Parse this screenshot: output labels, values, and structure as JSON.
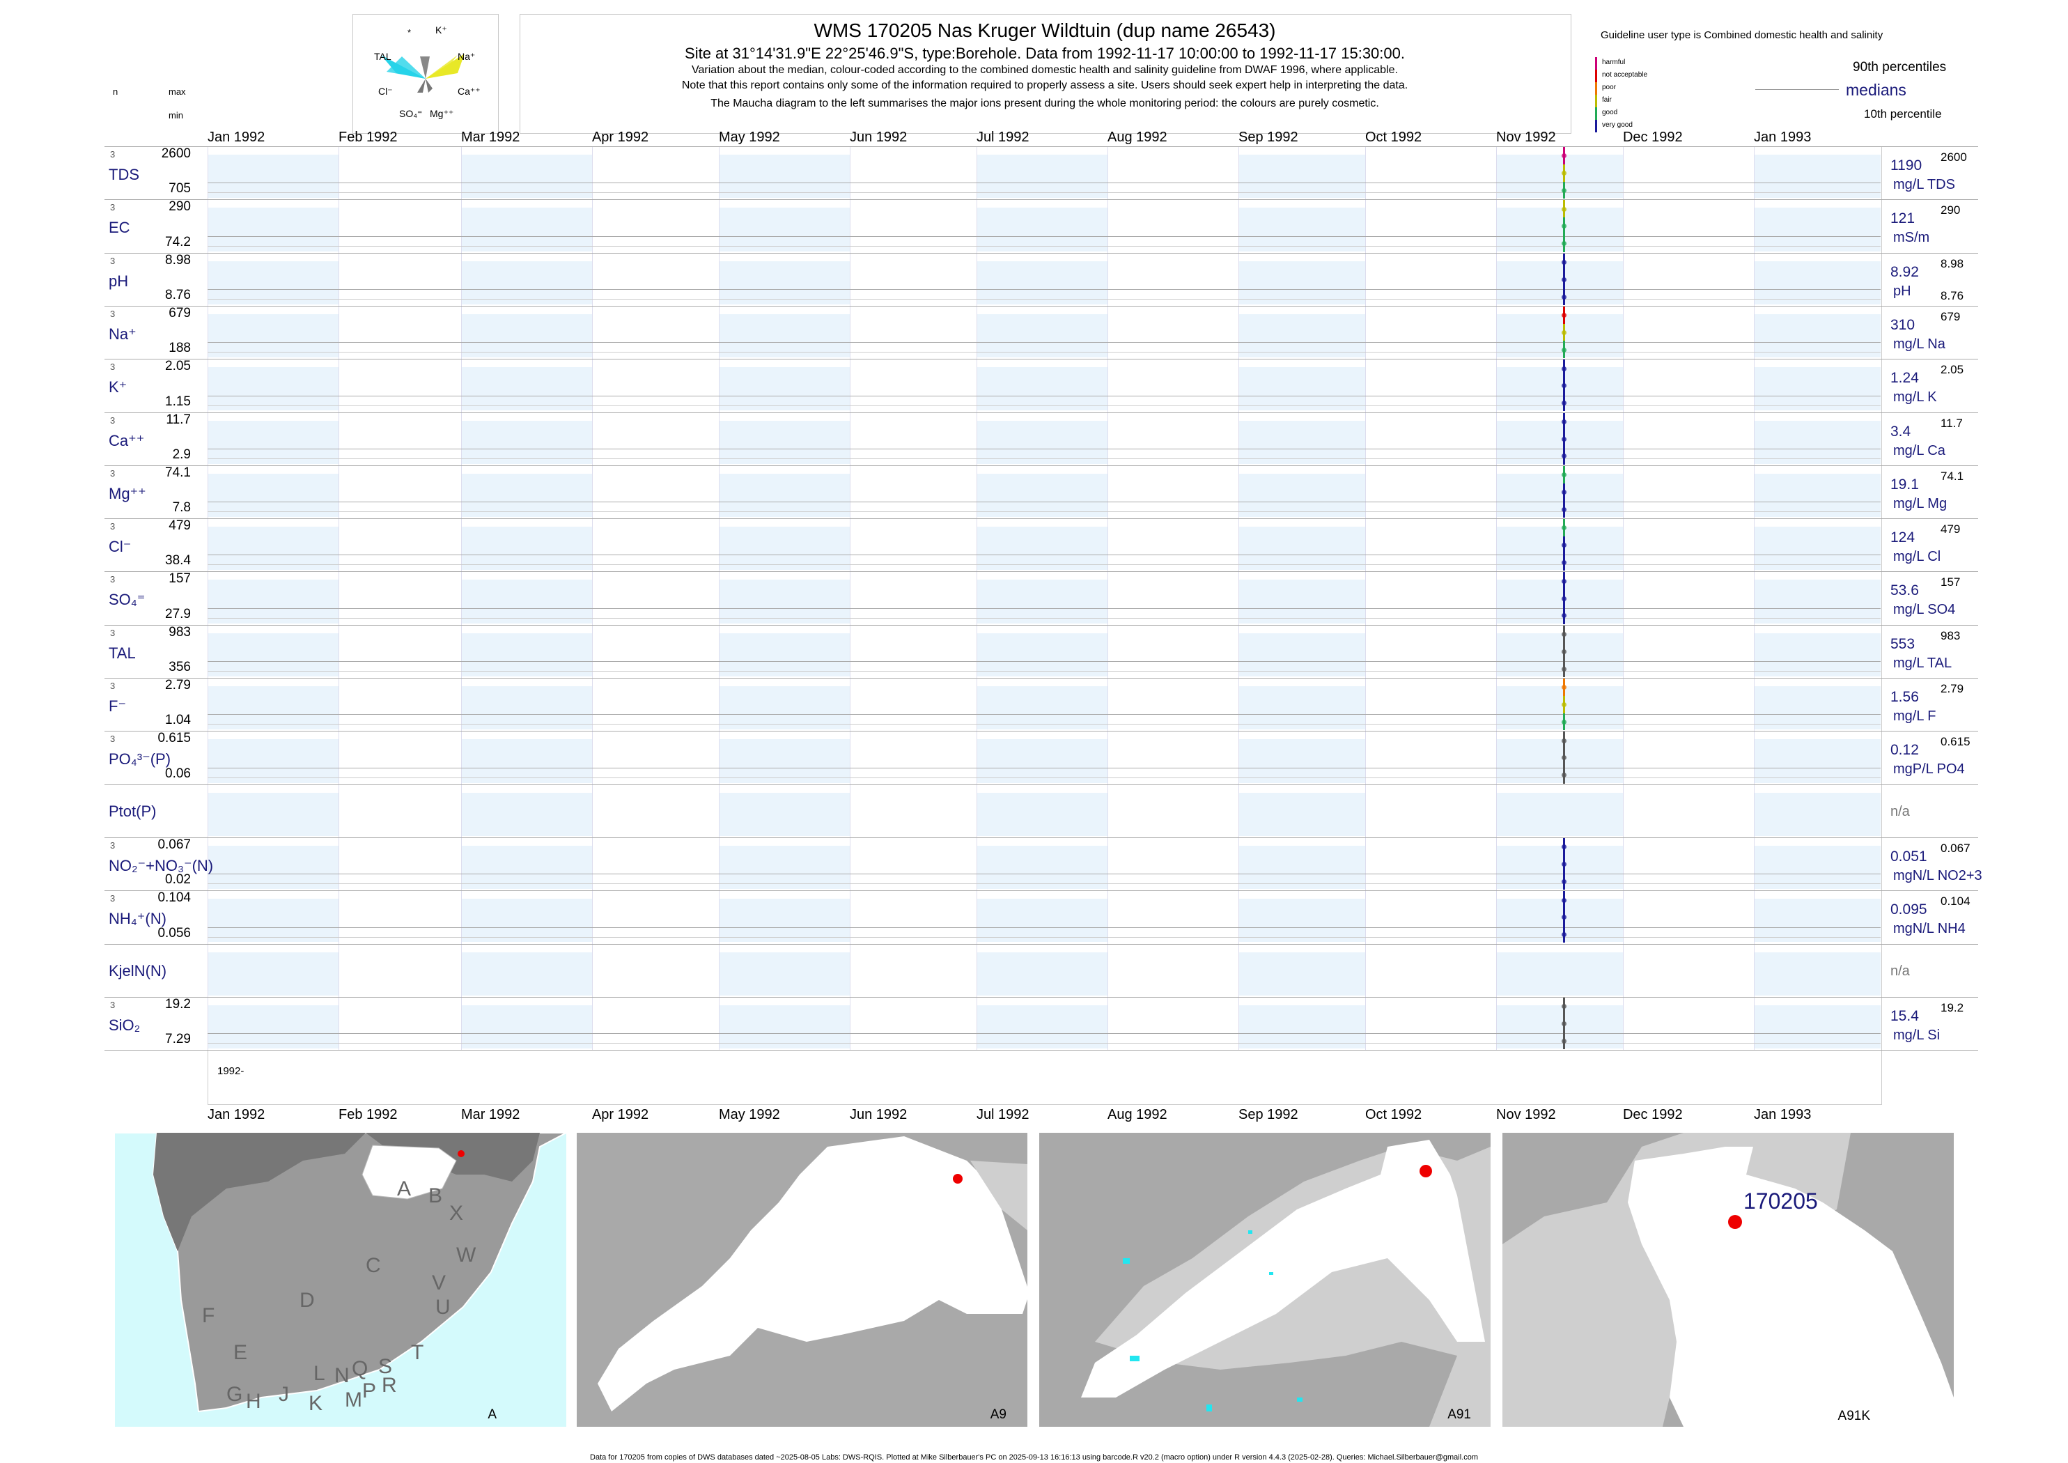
{
  "header": {
    "title": "WMS 170205  Nas Kruger Wildtuin (dup name 26543)",
    "line1": "Site at 31°14'31.9\"E 22°25'46.9\"S, type:Borehole.  Data from 1992-11-17 10:00:00 to 1992-11-17 15:30:00.",
    "line2": "Variation about the median,  colour-coded according to the combined domestic health and salinity guideline from DWAF 1996, where applicable.",
    "line3": "Note that this report contains only some of the information required to properly assess a site. Users should seek expert help in interpreting the data.",
    "line4": "The Maucha diagram to the left summarises the major ions present during the whole monitoring period: the colours are purely cosmetic."
  },
  "left_header": {
    "n": "n",
    "max": "max",
    "min": "min"
  },
  "maucha": {
    "star": "*",
    "k": "K⁺",
    "na": "Na⁺",
    "tal": "TAL",
    "cl": "Cl⁻",
    "ca": "Ca⁺⁺",
    "so4": "SO₄⁼",
    "mg": "Mg⁺⁺"
  },
  "guideline": {
    "title": "Guideline user type is Combined domestic health and salinity",
    "levels": [
      {
        "label": "harmful",
        "color": "#cc0077"
      },
      {
        "label": "not acceptable",
        "color": "#dd0000"
      },
      {
        "label": "poor",
        "color": "#ee7700"
      },
      {
        "label": "fair",
        "color": "#bbbb00"
      },
      {
        "label": "good",
        "color": "#22aa55"
      },
      {
        "label": "very good",
        "color": "#1a1a9a"
      }
    ],
    "p90": "90th percentiles",
    "medians": "medians",
    "p10": "10th percentile"
  },
  "chart_data": {
    "type": "line",
    "x_axis": {
      "start": "1992-01-01",
      "end": "1993-01-31",
      "ticks": [
        "Jan 1992",
        "Feb 1992",
        "Mar 1992",
        "Apr 1992",
        "May 1992",
        "Jun 1992",
        "Jul 1992",
        "Aug 1992",
        "Sep 1992",
        "Oct 1992",
        "Nov 1992",
        "Dec 1992",
        "Jan 1993"
      ],
      "year_label": "1992-"
    },
    "sample_date": "1992-11-17",
    "rows": [
      {
        "label": "TDS",
        "n": "3",
        "max": "2600",
        "min": "705",
        "median": "1190",
        "unit": "mg/L TDS",
        "top": "2600",
        "bottom": "",
        "colors": [
          "#cc0077",
          "#bbbb00",
          "#22aa55"
        ]
      },
      {
        "label": "EC",
        "n": "3",
        "max": "290",
        "min": "74.2",
        "median": "121",
        "unit": "mS/m",
        "top": "290",
        "bottom": "",
        "colors": [
          "#bbbb00",
          "#22aa55",
          "#22aa55"
        ]
      },
      {
        "label": "pH",
        "n": "3",
        "max": "8.98",
        "min": "8.76",
        "median": "8.92",
        "unit": "pH",
        "top": "8.98",
        "bottom": "8.76",
        "colors": [
          "#1a1a9a",
          "#1a1a9a",
          "#1a1a9a"
        ]
      },
      {
        "label": "Na⁺",
        "n": "3",
        "max": "679",
        "min": "188",
        "median": "310",
        "unit": "mg/L Na",
        "top": "679",
        "bottom": "",
        "colors": [
          "#dd0000",
          "#bbbb00",
          "#22aa55"
        ]
      },
      {
        "label": "K⁺",
        "n": "3",
        "max": "2.05",
        "min": "1.15",
        "median": "1.24",
        "unit": "mg/L K",
        "top": "2.05",
        "bottom": "",
        "colors": [
          "#1a1a9a",
          "#1a1a9a",
          "#1a1a9a"
        ]
      },
      {
        "label": "Ca⁺⁺",
        "n": "3",
        "max": "11.7",
        "min": "2.9",
        "median": "3.4",
        "unit": "mg/L Ca",
        "top": "11.7",
        "bottom": "",
        "colors": [
          "#1a1a9a",
          "#1a1a9a",
          "#1a1a9a"
        ]
      },
      {
        "label": "Mg⁺⁺",
        "n": "3",
        "max": "74.1",
        "min": "7.8",
        "median": "19.1",
        "unit": "mg/L Mg",
        "top": "74.1",
        "bottom": "",
        "colors": [
          "#22aa55",
          "#1a1a9a",
          "#1a1a9a"
        ]
      },
      {
        "label": "Cl⁻",
        "n": "3",
        "max": "479",
        "min": "38.4",
        "median": "124",
        "unit": "mg/L Cl",
        "top": "479",
        "bottom": "",
        "colors": [
          "#22aa55",
          "#1a1a9a",
          "#1a1a9a"
        ]
      },
      {
        "label": "SO₄⁼",
        "n": "3",
        "max": "157",
        "min": "27.9",
        "median": "53.6",
        "unit": "mg/L SO4",
        "top": "157",
        "bottom": "",
        "colors": [
          "#1a1a9a",
          "#1a1a9a",
          "#1a1a9a"
        ]
      },
      {
        "label": "TAL",
        "n": "3",
        "max": "983",
        "min": "356",
        "median": "553",
        "unit": "mg/L TAL",
        "top": "983",
        "bottom": "",
        "colors": [
          "#555555",
          "#555555",
          "#555555"
        ]
      },
      {
        "label": "F⁻",
        "n": "3",
        "max": "2.79",
        "min": "1.04",
        "median": "1.56",
        "unit": "mg/L F",
        "top": "2.79",
        "bottom": "",
        "colors": [
          "#ee7700",
          "#bbbb00",
          "#22aa55"
        ]
      },
      {
        "label": "PO₄³⁻(P)",
        "n": "3",
        "max": "0.615",
        "min": "0.06",
        "median": "0.12",
        "unit": "mgP/L PO4",
        "top": "0.615",
        "bottom": "",
        "colors": [
          "#555555",
          "#555555",
          "#555555"
        ]
      },
      {
        "label": "Ptot(P)",
        "n": "",
        "max": "",
        "min": "",
        "median": "",
        "unit": "",
        "top": "",
        "bottom": "",
        "na": "n/a",
        "colors": []
      },
      {
        "label": "NO₂⁻+NO₃⁻(N)",
        "n": "3",
        "max": "0.067",
        "min": "0.02",
        "median": "0.051",
        "unit": "mgN/L NO2+3",
        "top": "0.067",
        "bottom": "",
        "colors": [
          "#1a1a9a",
          "#1a1a9a",
          "#1a1a9a"
        ]
      },
      {
        "label": "NH₄⁺(N)",
        "n": "3",
        "max": "0.104",
        "min": "0.056",
        "median": "0.095",
        "unit": "mgN/L NH4",
        "top": "0.104",
        "bottom": "",
        "colors": [
          "#1a1a9a",
          "#1a1a9a",
          "#1a1a9a"
        ]
      },
      {
        "label": "KjelN(N)",
        "n": "",
        "max": "",
        "min": "",
        "median": "",
        "unit": "",
        "top": "",
        "bottom": "",
        "na": "n/a",
        "colors": []
      },
      {
        "label": "SiO₂",
        "n": "3",
        "max": "19.2",
        "min": "7.29",
        "median": "15.4",
        "unit": "mg/L Si",
        "top": "19.2",
        "bottom": "",
        "colors": [
          "#555555",
          "#555555",
          "#555555"
        ]
      }
    ]
  },
  "maps": {
    "labels": [
      "A",
      "A9",
      "A91",
      "A91K"
    ],
    "site_label": "170205",
    "regions": [
      "A",
      "B",
      "X",
      "C",
      "W",
      "D",
      "V",
      "U",
      "F",
      "T",
      "E",
      "L",
      "N",
      "Q",
      "S",
      "G",
      "H",
      "J",
      "K",
      "M",
      "P",
      "R"
    ]
  },
  "footer": "Data for 170205 from copies of DWS databases dated ~2025-08-05 Labs: DWS-RQIS. Plotted at Mike Silberbauer's PC on 2025-09-13 16:16:13 using barcode.R v20.2 (macro option) under R version 4.4.3 (2025-02-28). Queries: Michael.Silberbauer@gmail.com"
}
